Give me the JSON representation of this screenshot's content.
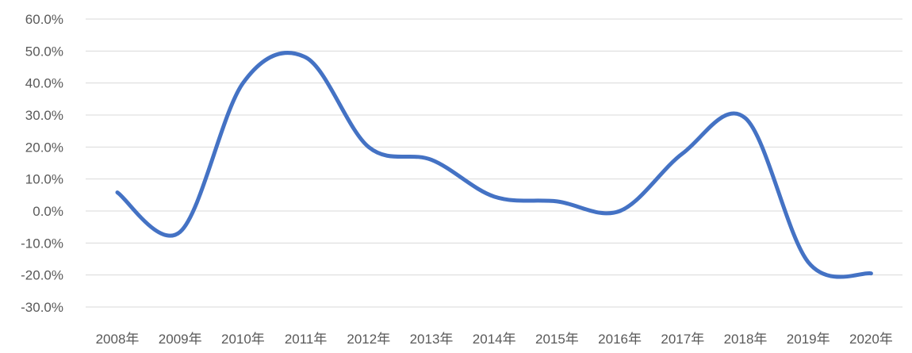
{
  "chart_data": {
    "type": "line",
    "categories": [
      "2008年",
      "2009年",
      "2010年",
      "2011年",
      "2012年",
      "2013年",
      "2014年",
      "2015年",
      "2016年",
      "2017年",
      "2018年",
      "2019年",
      "2020年"
    ],
    "series": [
      {
        "values": [
          5.8,
          -6.5,
          40.0,
          48.0,
          20.0,
          16.0,
          4.5,
          3.0,
          0.0,
          18.0,
          29.0,
          -16.0,
          -19.5
        ],
        "color": "#4472c4"
      }
    ],
    "yticks": [
      "60.0%",
      "50.0%",
      "40.0%",
      "30.0%",
      "20.0%",
      "10.0%",
      "0.0%",
      "-10.0%",
      "-20.0%",
      "-30.0%"
    ],
    "ylim": [
      -30,
      60
    ],
    "smooth": true,
    "grid": true,
    "legend": "none",
    "title": "",
    "xlabel": "",
    "ylabel": ""
  }
}
